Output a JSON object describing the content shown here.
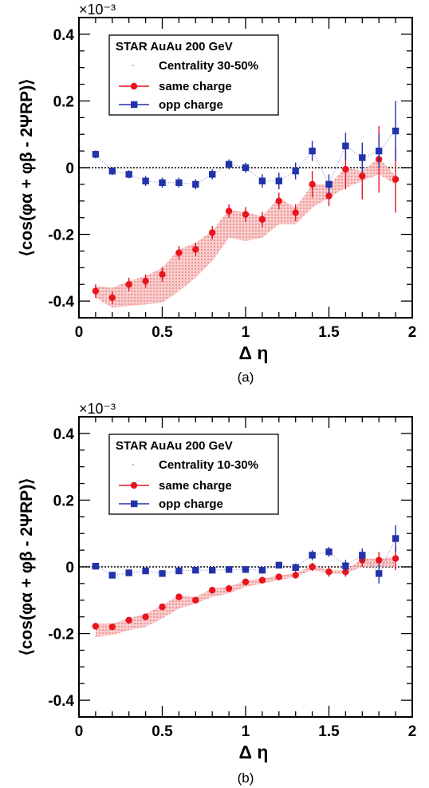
{
  "chart_data": [
    {
      "type": "scatter",
      "caption": "(a)",
      "multiplier": "×10⁻³",
      "ylabel": "⟨cos(φα + φβ - 2ΨRP)⟩",
      "xlabel": "Δ η",
      "xlim": [
        0,
        2
      ],
      "ylim": [
        -0.45,
        0.45
      ],
      "x_ticks": [
        "0",
        "0.5",
        "1",
        "1.5",
        "2"
      ],
      "y_ticks": [
        "-0.4",
        "-0.2",
        "0",
        "0.2",
        "0.4"
      ],
      "legend": {
        "placement": "top-left",
        "header": "STAR AuAu 200 GeV",
        "centrality": "Centrality 30-50%"
      },
      "series": [
        {
          "name": "same charge",
          "color": "#e8141e",
          "marker": "circle",
          "x": [
            0.1,
            0.2,
            0.3,
            0.4,
            0.5,
            0.6,
            0.7,
            0.8,
            0.9,
            1.0,
            1.1,
            1.2,
            1.3,
            1.4,
            1.5,
            1.6,
            1.7,
            1.8,
            1.9
          ],
          "y": [
            -0.37,
            -0.39,
            -0.35,
            -0.34,
            -0.32,
            -0.255,
            -0.245,
            -0.195,
            -0.13,
            -0.14,
            -0.155,
            -0.1,
            -0.135,
            -0.05,
            -0.085,
            -0.005,
            -0.025,
            0.025,
            -0.035
          ],
          "err": [
            0.02,
            0.02,
            0.02,
            0.02,
            0.022,
            0.02,
            0.02,
            0.02,
            0.02,
            0.022,
            0.022,
            0.025,
            0.025,
            0.04,
            0.03,
            0.06,
            0.07,
            0.1,
            0.1
          ],
          "band_low": [
            -0.39,
            -0.42,
            -0.415,
            -0.41,
            -0.405,
            -0.37,
            -0.33,
            -0.28,
            -0.21,
            -0.22,
            -0.21,
            -0.17,
            -0.17,
            -0.12,
            -0.09,
            -0.06,
            -0.04,
            -0.02,
            -0.05
          ],
          "band_high": [
            -0.355,
            -0.36,
            -0.34,
            -0.325,
            -0.3,
            -0.245,
            -0.225,
            -0.19,
            -0.125,
            -0.135,
            -0.145,
            -0.09,
            -0.12,
            -0.05,
            -0.05,
            0.0,
            -0.01,
            0.03,
            -0.025
          ]
        },
        {
          "name": "opp charge",
          "color": "#2233aa",
          "marker": "square",
          "x": [
            0.1,
            0.2,
            0.3,
            0.4,
            0.5,
            0.6,
            0.7,
            0.8,
            0.9,
            1.0,
            1.1,
            1.2,
            1.3,
            1.4,
            1.5,
            1.6,
            1.7,
            1.8,
            1.9
          ],
          "y": [
            0.04,
            -0.01,
            -0.02,
            -0.04,
            -0.045,
            -0.045,
            -0.05,
            -0.02,
            0.01,
            0.0,
            -0.04,
            -0.04,
            -0.01,
            0.05,
            -0.05,
            0.065,
            0.03,
            0.05,
            0.11
          ],
          "err": [
            0.012,
            0.012,
            0.012,
            0.015,
            0.015,
            0.015,
            0.015,
            0.015,
            0.015,
            0.015,
            0.02,
            0.025,
            0.025,
            0.03,
            0.03,
            0.04,
            0.045,
            0.05,
            0.09
          ]
        }
      ]
    },
    {
      "type": "scatter",
      "caption": "(b)",
      "multiplier": "×10⁻³",
      "ylabel": "⟨cos(φα + φβ - 2ΨRP)⟩",
      "xlabel": "Δ η",
      "xlim": [
        0,
        2
      ],
      "ylim": [
        -0.45,
        0.45
      ],
      "x_ticks": [
        "0",
        "0.5",
        "1",
        "1.5",
        "2"
      ],
      "y_ticks": [
        "-0.4",
        "-0.2",
        "0",
        "0.2",
        "0.4"
      ],
      "legend": {
        "placement": "top-left",
        "header": "STAR AuAu 200 GeV",
        "centrality": "Centrality 10-30%"
      },
      "series": [
        {
          "name": "same charge",
          "color": "#e8141e",
          "marker": "circle",
          "x": [
            0.1,
            0.2,
            0.3,
            0.4,
            0.5,
            0.6,
            0.7,
            0.8,
            0.9,
            1.0,
            1.1,
            1.2,
            1.3,
            1.4,
            1.5,
            1.6,
            1.7,
            1.8,
            1.9
          ],
          "y": [
            -0.178,
            -0.18,
            -0.16,
            -0.15,
            -0.12,
            -0.09,
            -0.1,
            -0.07,
            -0.065,
            -0.045,
            -0.04,
            -0.03,
            -0.025,
            0.0,
            -0.015,
            -0.015,
            0.02,
            0.02,
            0.025
          ],
          "err": [
            0.008,
            0.008,
            0.008,
            0.008,
            0.008,
            0.008,
            0.008,
            0.008,
            0.008,
            0.01,
            0.01,
            0.01,
            0.01,
            0.012,
            0.015,
            0.015,
            0.02,
            0.025,
            0.035
          ],
          "band_low": [
            -0.21,
            -0.205,
            -0.19,
            -0.18,
            -0.155,
            -0.125,
            -0.11,
            -0.09,
            -0.08,
            -0.06,
            -0.05,
            -0.04,
            -0.03,
            -0.01,
            -0.02,
            -0.02,
            0.0,
            0.0,
            0.0
          ],
          "band_high": [
            -0.17,
            -0.17,
            -0.155,
            -0.14,
            -0.115,
            -0.085,
            -0.09,
            -0.065,
            -0.06,
            -0.04,
            -0.035,
            -0.025,
            -0.02,
            0.005,
            -0.01,
            -0.01,
            0.025,
            0.025,
            0.03
          ]
        },
        {
          "name": "opp charge",
          "color": "#2233aa",
          "marker": "square",
          "x": [
            0.1,
            0.2,
            0.3,
            0.4,
            0.5,
            0.6,
            0.7,
            0.8,
            0.9,
            1.0,
            1.1,
            1.2,
            1.3,
            1.4,
            1.5,
            1.6,
            1.7,
            1.8,
            1.9
          ],
          "y": [
            0.002,
            -0.025,
            -0.018,
            -0.012,
            -0.02,
            -0.012,
            -0.01,
            -0.01,
            -0.008,
            -0.008,
            -0.01,
            0.005,
            -0.002,
            0.035,
            0.045,
            0.003,
            0.035,
            -0.02,
            0.085
          ],
          "err": [
            0.006,
            0.006,
            0.006,
            0.006,
            0.006,
            0.006,
            0.006,
            0.006,
            0.006,
            0.008,
            0.008,
            0.01,
            0.012,
            0.015,
            0.015,
            0.018,
            0.02,
            0.03,
            0.04
          ]
        }
      ]
    }
  ]
}
